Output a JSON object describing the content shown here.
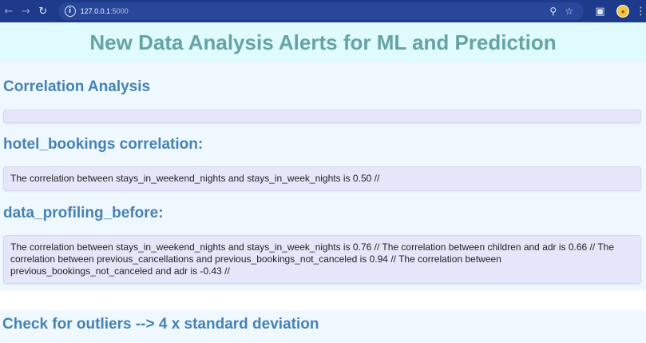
{
  "browser": {
    "url_host": "127.0.0.1",
    "url_port": ":5000",
    "icons": [
      "arrow-left-icon",
      "arrow-right-icon",
      "reload-icon",
      "site-info-icon",
      "zoom-icon",
      "star-icon",
      "extensions-icon",
      "profile-icon",
      "more-icon"
    ]
  },
  "page": {
    "title": "New Data Analysis Alerts for ML and Prediction",
    "correlation_heading": "Correlation Analysis",
    "empty_box_text": "",
    "hotel_heading": "hotel_bookings correlation:",
    "hotel_text": "The correlation between stays_in_weekend_nights and stays_in_week_nights is 0.50 //",
    "profiling_heading": "data_profiling_before:",
    "profiling_text": "The correlation between stays_in_weekend_nights and stays_in_week_nights is 0.76 // The correlation between children and adr is 0.66 // The correlation between previous_cancellations and previous_bookings_not_canceled is 0.94 // The correlation between previous_bookings_not_canceled and adr is -0.43 //",
    "outliers_heading": "Check for outliers --> 4 x standard deviation"
  },
  "colors": {
    "chrome": "#1e3a8a",
    "header_bg": "#e0fbfd",
    "title": "#66a3a3",
    "heading": "#4682b4",
    "section_bg": "#f0f8ff",
    "box_bg": "#e6e6fa"
  }
}
